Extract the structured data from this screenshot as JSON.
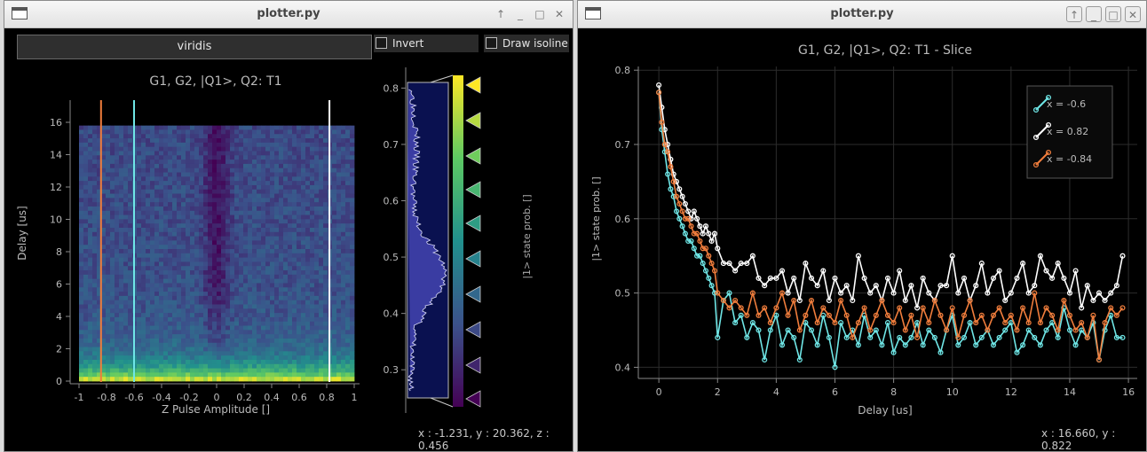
{
  "left_window": {
    "title": "plotter.py",
    "colormap_value": "viridis",
    "invert_label": "Invert",
    "isoline_label": "Draw isoline",
    "coords": "x : -1.231, y : 20.362, z : 0.456",
    "colors": {
      "line_orange": "#f07d3c",
      "line_cyan": "#6fe6e6",
      "line_white": "#ffffff"
    }
  },
  "right_window": {
    "title": "plotter.py",
    "coords": "x : 16.660, y : 0.822"
  },
  "chart_data": [
    {
      "type": "heatmap",
      "title": "G1, G2, |Q1>, Q2: T1",
      "xlabel": "Z Pulse Amplitude []",
      "ylabel": "Delay [us]",
      "xlim": [
        -1,
        1
      ],
      "ylim": [
        0,
        16
      ],
      "x_ticks": [
        "-1",
        "-0.8",
        "-0.6",
        "-0.4",
        "-0.2",
        "0",
        "0.2",
        "0.4",
        "0.6",
        "0.8",
        "1"
      ],
      "y_ticks": [
        "0",
        "2",
        "4",
        "6",
        "8",
        "10",
        "12",
        "14",
        "16"
      ],
      "colormap": "viridis",
      "vertical_lines": [
        {
          "x": -0.84,
          "color": "#f07d3c"
        },
        {
          "x": -0.6,
          "color": "#6fe6e6"
        },
        {
          "x": 0.82,
          "color": "#ffffff"
        }
      ],
      "colorbar": {
        "label": "|1> state prob. []",
        "range": [
          0.25,
          0.81
        ],
        "ticks": [
          "0.3",
          "0.4",
          "0.5",
          "0.6",
          "0.7",
          "0.8"
        ]
      }
    },
    {
      "type": "line",
      "title": "G1, G2, |Q1>, Q2: T1 - Slice",
      "xlabel": "Delay [us]",
      "ylabel": "|1> state prob. []",
      "xlim": [
        -0.7,
        16.3
      ],
      "ylim": [
        0.385,
        0.805
      ],
      "x_ticks": [
        0,
        2,
        4,
        6,
        8,
        10,
        12,
        14,
        16
      ],
      "y_ticks": [
        0.4,
        0.5,
        0.6,
        0.7,
        0.8
      ],
      "grid": true,
      "legend_position": "top-right",
      "x": [
        0,
        0.1,
        0.2,
        0.3,
        0.4,
        0.5,
        0.6,
        0.7,
        0.8,
        0.9,
        1.0,
        1.1,
        1.2,
        1.3,
        1.4,
        1.5,
        1.6,
        1.7,
        1.8,
        1.9,
        2.0,
        2.2,
        2.4,
        2.6,
        2.8,
        3.0,
        3.2,
        3.4,
        3.6,
        3.8,
        4.0,
        4.2,
        4.4,
        4.6,
        4.8,
        5.0,
        5.2,
        5.4,
        5.6,
        5.8,
        6.0,
        6.2,
        6.4,
        6.6,
        6.8,
        7.0,
        7.2,
        7.4,
        7.6,
        7.8,
        8.0,
        8.2,
        8.4,
        8.6,
        8.8,
        9.0,
        9.2,
        9.4,
        9.6,
        9.8,
        10.0,
        10.2,
        10.4,
        10.6,
        10.8,
        11.0,
        11.2,
        11.4,
        11.6,
        11.8,
        12.0,
        12.2,
        12.4,
        12.6,
        12.8,
        13.0,
        13.2,
        13.4,
        13.6,
        13.8,
        14.0,
        14.2,
        14.4,
        14.6,
        14.8,
        15.0,
        15.2,
        15.4,
        15.6,
        15.8
      ],
      "series": [
        {
          "name": "x = -0.6",
          "color": "#6fe6e6",
          "values": [
            0.77,
            0.72,
            0.69,
            0.66,
            0.64,
            0.63,
            0.61,
            0.6,
            0.59,
            0.58,
            0.57,
            0.57,
            0.56,
            0.55,
            0.55,
            0.54,
            0.53,
            0.52,
            0.51,
            0.5,
            0.44,
            0.49,
            0.5,
            0.46,
            0.47,
            0.44,
            0.46,
            0.45,
            0.41,
            0.45,
            0.47,
            0.43,
            0.45,
            0.44,
            0.41,
            0.46,
            0.45,
            0.43,
            0.47,
            0.44,
            0.4,
            0.46,
            0.44,
            0.45,
            0.43,
            0.47,
            0.44,
            0.45,
            0.43,
            0.46,
            0.42,
            0.44,
            0.43,
            0.44,
            0.46,
            0.43,
            0.45,
            0.44,
            0.42,
            0.45,
            0.47,
            0.43,
            0.44,
            0.46,
            0.43,
            0.44,
            0.45,
            0.43,
            0.44,
            0.45,
            0.46,
            0.42,
            0.43,
            0.45,
            0.44,
            0.43,
            0.45,
            0.46,
            0.44,
            0.48,
            0.45,
            0.43,
            0.45,
            0.44,
            0.46,
            0.41,
            0.45,
            0.47,
            0.44,
            0.44
          ]
        },
        {
          "name": "x = 0.82",
          "color": "#ffffff",
          "values": [
            0.78,
            0.75,
            0.72,
            0.7,
            0.68,
            0.66,
            0.65,
            0.64,
            0.63,
            0.62,
            0.61,
            0.6,
            0.61,
            0.6,
            0.59,
            0.58,
            0.59,
            0.58,
            0.57,
            0.58,
            0.56,
            0.54,
            0.54,
            0.53,
            0.54,
            0.54,
            0.55,
            0.52,
            0.51,
            0.52,
            0.52,
            0.53,
            0.5,
            0.52,
            0.49,
            0.54,
            0.52,
            0.51,
            0.53,
            0.49,
            0.52,
            0.5,
            0.51,
            0.49,
            0.55,
            0.52,
            0.5,
            0.51,
            0.49,
            0.52,
            0.5,
            0.53,
            0.49,
            0.51,
            0.48,
            0.52,
            0.5,
            0.49,
            0.51,
            0.51,
            0.55,
            0.5,
            0.52,
            0.49,
            0.51,
            0.54,
            0.5,
            0.52,
            0.53,
            0.49,
            0.5,
            0.52,
            0.54,
            0.5,
            0.51,
            0.55,
            0.53,
            0.52,
            0.54,
            0.52,
            0.5,
            0.53,
            0.48,
            0.51,
            0.49,
            0.5,
            0.49,
            0.5,
            0.51,
            0.55
          ]
        },
        {
          "name": "x = -0.84",
          "color": "#f07d3c",
          "values": [
            0.77,
            0.73,
            0.7,
            0.69,
            0.67,
            0.65,
            0.63,
            0.62,
            0.61,
            0.6,
            0.6,
            0.59,
            0.58,
            0.58,
            0.57,
            0.56,
            0.56,
            0.55,
            0.54,
            0.53,
            0.5,
            0.49,
            0.48,
            0.49,
            0.48,
            0.47,
            0.5,
            0.47,
            0.48,
            0.46,
            0.48,
            0.5,
            0.47,
            0.49,
            0.45,
            0.47,
            0.49,
            0.46,
            0.48,
            0.47,
            0.46,
            0.49,
            0.47,
            0.44,
            0.46,
            0.48,
            0.45,
            0.47,
            0.49,
            0.47,
            0.46,
            0.48,
            0.45,
            0.47,
            0.44,
            0.48,
            0.46,
            0.49,
            0.47,
            0.45,
            0.48,
            0.44,
            0.47,
            0.49,
            0.46,
            0.47,
            0.45,
            0.47,
            0.48,
            0.46,
            0.47,
            0.45,
            0.48,
            0.46,
            0.5,
            0.46,
            0.48,
            0.47,
            0.45,
            0.49,
            0.47,
            0.45,
            0.46,
            0.44,
            0.47,
            0.41,
            0.46,
            0.48,
            0.47,
            0.48
          ]
        }
      ]
    }
  ]
}
